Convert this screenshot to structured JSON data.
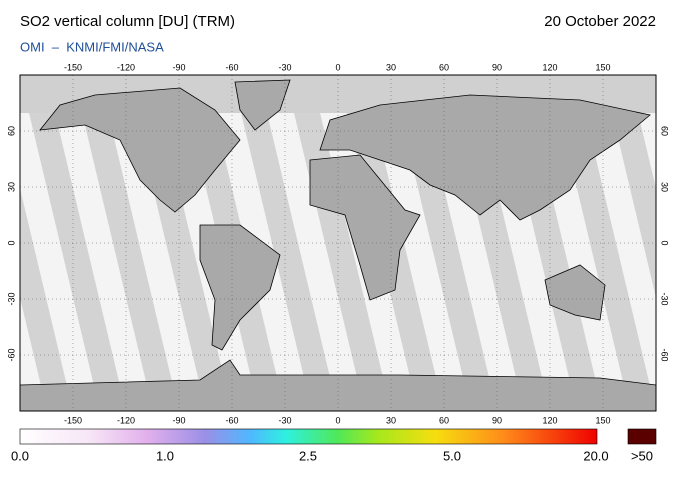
{
  "header": {
    "title": "SO2 vertical column [DU] (TRM)",
    "date": "20 October 2022",
    "credit": "OMI  –  KNMI/FMI/NASA"
  },
  "map": {
    "lon_ticks": [
      -150,
      -120,
      -90,
      -60,
      -30,
      0,
      30,
      60,
      90,
      120,
      150
    ],
    "lat_ticks": [
      60,
      30,
      0,
      -30,
      -60
    ]
  },
  "colorbar": {
    "labels": [
      "0.0",
      "1.0",
      "2.5",
      "5.0",
      "20.0"
    ],
    "overflow": ">50"
  }
}
